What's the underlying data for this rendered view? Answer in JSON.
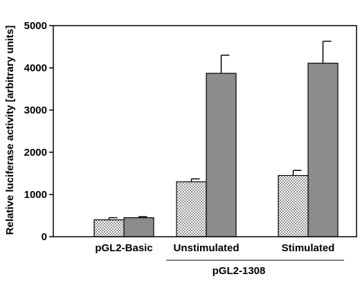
{
  "chart_data": {
    "type": "bar",
    "ylabel": "Relative luciferase activity [arbitrary units]",
    "ylim": [
      0,
      5000
    ],
    "yticks": [
      0,
      1000,
      2000,
      3000,
      4000,
      5000
    ],
    "yticks_labels": [
      "0",
      "1000",
      "2000",
      "3000",
      "4000",
      "5000"
    ],
    "categories": [
      "pGL2-Basic",
      "Unstimulated",
      "Stimulated"
    ],
    "group_label": "pGL2-1308",
    "series": [
      {
        "values": [
          400,
          1300,
          1450
        ],
        "errors": [
          50,
          70,
          120
        ],
        "fill": "dotted"
      },
      {
        "values": [
          450,
          3870,
          4110
        ],
        "errors": [
          25,
          430,
          520
        ],
        "fill": "#8c8c8c"
      }
    ],
    "grid": false,
    "legend": "none"
  }
}
